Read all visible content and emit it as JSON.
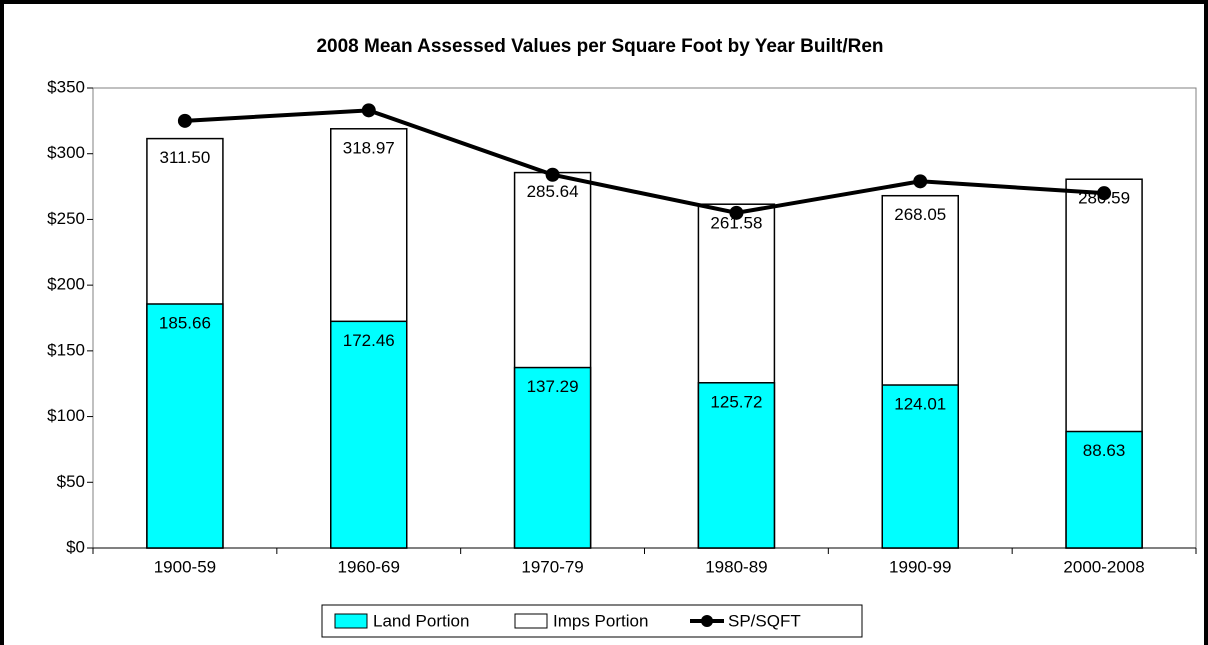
{
  "chart_data": {
    "type": "bar",
    "title": "2008 Mean Assessed Values per Square Foot by Year Built/Ren",
    "categories": [
      "1900-59",
      "1960-69",
      "1970-79",
      "1980-89",
      "1990-99",
      "2000-2008"
    ],
    "series": [
      {
        "name": "Land Portion",
        "color": "#00ffff",
        "values": [
          185.66,
          172.46,
          137.29,
          125.72,
          124.01,
          88.63
        ],
        "value_labels": [
          "185.66",
          "172.46",
          "137.29",
          "125.72",
          "124.01",
          "88.63"
        ]
      },
      {
        "name": "Imps Portion",
        "color": "#ffffff",
        "values": [
          311.5,
          318.97,
          285.64,
          261.58,
          268.05,
          280.59
        ],
        "value_labels": [
          "311.50",
          "318.97",
          "285.64",
          "261.58",
          "268.05",
          "280.59"
        ]
      },
      {
        "name": "SP/SQFT",
        "type": "line",
        "color": "#000000",
        "values": [
          325,
          333,
          284,
          255,
          279,
          270
        ]
      }
    ],
    "ylim": [
      0,
      350
    ],
    "yticks": [
      {
        "value": 0,
        "label": "$0"
      },
      {
        "value": 50,
        "label": "$50"
      },
      {
        "value": 100,
        "label": "$100"
      },
      {
        "value": 150,
        "label": "$150"
      },
      {
        "value": 200,
        "label": "$200"
      },
      {
        "value": 250,
        "label": "$250"
      },
      {
        "value": 300,
        "label": "$300"
      },
      {
        "value": 350,
        "label": "$350"
      }
    ],
    "grid": false,
    "legend": "bottom"
  }
}
